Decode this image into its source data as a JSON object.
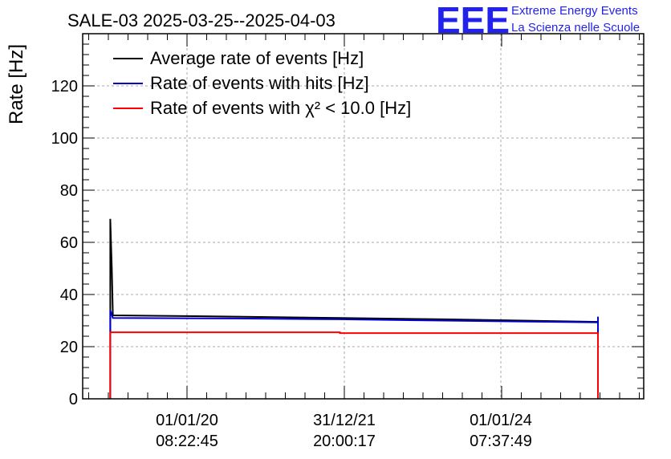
{
  "chart_data": {
    "type": "line",
    "title": "SALE-03 2025-03-25--2025-04-03",
    "ylabel": "Rate [Hz]",
    "xlabel": "",
    "ylim": [
      0,
      140
    ],
    "yticks": [
      0,
      20,
      40,
      60,
      80,
      100,
      120
    ],
    "grid": true,
    "legend_position": "top-left",
    "x_tick_labels": [
      {
        "date": "01/01/20",
        "time": "08:22:45"
      },
      {
        "date": "31/12/21",
        "time": "20:00:17"
      },
      {
        "date": "01/01/24",
        "time": "07:37:49"
      }
    ],
    "series": [
      {
        "name": "Average rate of events [Hz]",
        "color": "#000000",
        "points": [
          [
            0.055,
            0
          ],
          [
            0.055,
            69
          ],
          [
            0.058,
            50
          ],
          [
            0.06,
            32
          ],
          [
            0.3,
            31.5
          ],
          [
            0.5,
            31
          ],
          [
            0.7,
            30.5
          ],
          [
            1.0,
            29.5
          ],
          [
            1.0,
            0
          ]
        ]
      },
      {
        "name": "Rate of events with hits [Hz]",
        "color": "#0000cc",
        "points": [
          [
            0.055,
            0
          ],
          [
            0.055,
            34
          ],
          [
            0.06,
            31
          ],
          [
            0.3,
            30.8
          ],
          [
            0.5,
            30.5
          ],
          [
            0.7,
            30
          ],
          [
            1.0,
            29.3
          ],
          [
            1.0,
            31.5
          ],
          [
            1.0,
            0
          ]
        ]
      },
      {
        "name": "Rate of events with χ² < 10.0 [Hz]",
        "color": "#ff0000",
        "points": [
          [
            0.055,
            0
          ],
          [
            0.055,
            25.5
          ],
          [
            0.5,
            25.5
          ],
          [
            0.5,
            25.2
          ],
          [
            1.0,
            25.2
          ],
          [
            1.0,
            0
          ]
        ]
      }
    ]
  },
  "logo": {
    "mark": "EEE",
    "line1": "Extreme Energy Events",
    "line2": "La Scienza nelle Scuole"
  }
}
